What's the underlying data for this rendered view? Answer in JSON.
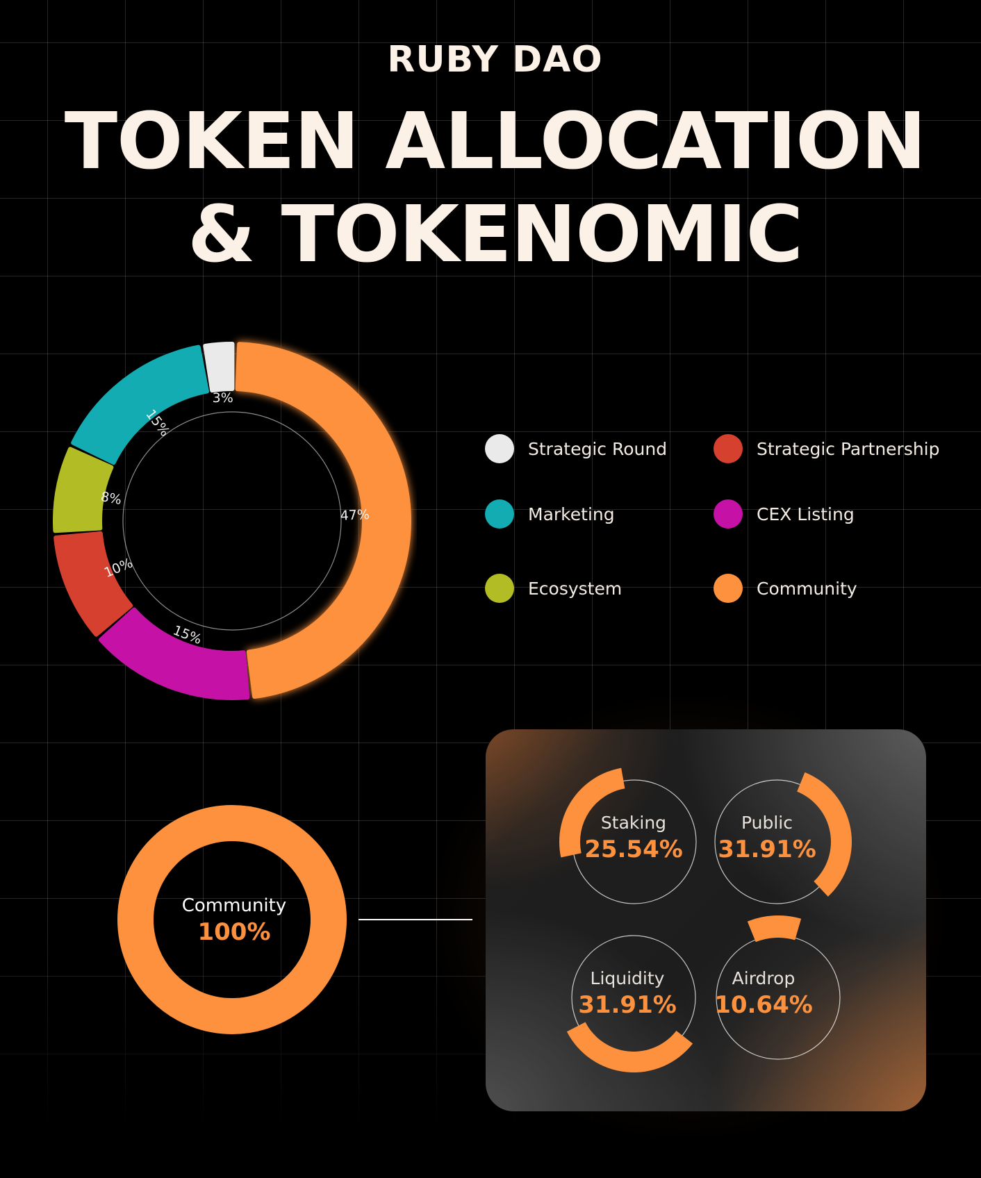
{
  "header": {
    "brand": "RUBY DAO",
    "title_line1": "TOKEN ALLOCATION",
    "title_line2": "& TOKENOMIC"
  },
  "colors": {
    "background": "#000000",
    "text": "#fbf1e6",
    "accent": "#fd913d"
  },
  "chart_data": [
    {
      "type": "pie",
      "variant": "donut",
      "title": "",
      "slices": [
        {
          "name": "Community",
          "value": 47,
          "label": "47%",
          "color": "#fd913d"
        },
        {
          "name": "CEX Listing",
          "value": 15,
          "label": "15%",
          "color": "#c611a6"
        },
        {
          "name": "Strategic Partnership",
          "value": 10,
          "label": "10%",
          "color": "#d5402f"
        },
        {
          "name": "Ecosystem",
          "value": 8,
          "label": "8%",
          "color": "#b2bd25"
        },
        {
          "name": "Marketing",
          "value": 15,
          "label": "15%",
          "color": "#13acb3"
        },
        {
          "name": "Strategic Round",
          "value": 3,
          "label": "3%",
          "color": "#eaeaea"
        }
      ],
      "legend": {
        "placement": "right",
        "items": [
          {
            "name": "Strategic Round",
            "color": "#eaeaea"
          },
          {
            "name": "Strategic Partnership",
            "color": "#d5402f"
          },
          {
            "name": "Marketing",
            "color": "#13acb3"
          },
          {
            "name": "CEX Listing",
            "color": "#c611a6"
          },
          {
            "name": "Ecosystem",
            "color": "#b2bd25"
          },
          {
            "name": "Community",
            "color": "#fd913d"
          }
        ]
      }
    },
    {
      "type": "pie",
      "variant": "donut",
      "label": "Community",
      "value_label": "100%",
      "value": 100,
      "color": "#fd913d"
    },
    {
      "type": "pie",
      "variant": "gauges",
      "items": [
        {
          "name": "Staking",
          "value": 25.54,
          "label": "25.54%"
        },
        {
          "name": "Public",
          "value": 31.91,
          "label": "31.91%"
        },
        {
          "name": "Liquidity",
          "value": 31.91,
          "label": "31.91%"
        },
        {
          "name": "Airdrop",
          "value": 10.64,
          "label": "10.64%"
        }
      ],
      "color": "#fd913d"
    }
  ]
}
